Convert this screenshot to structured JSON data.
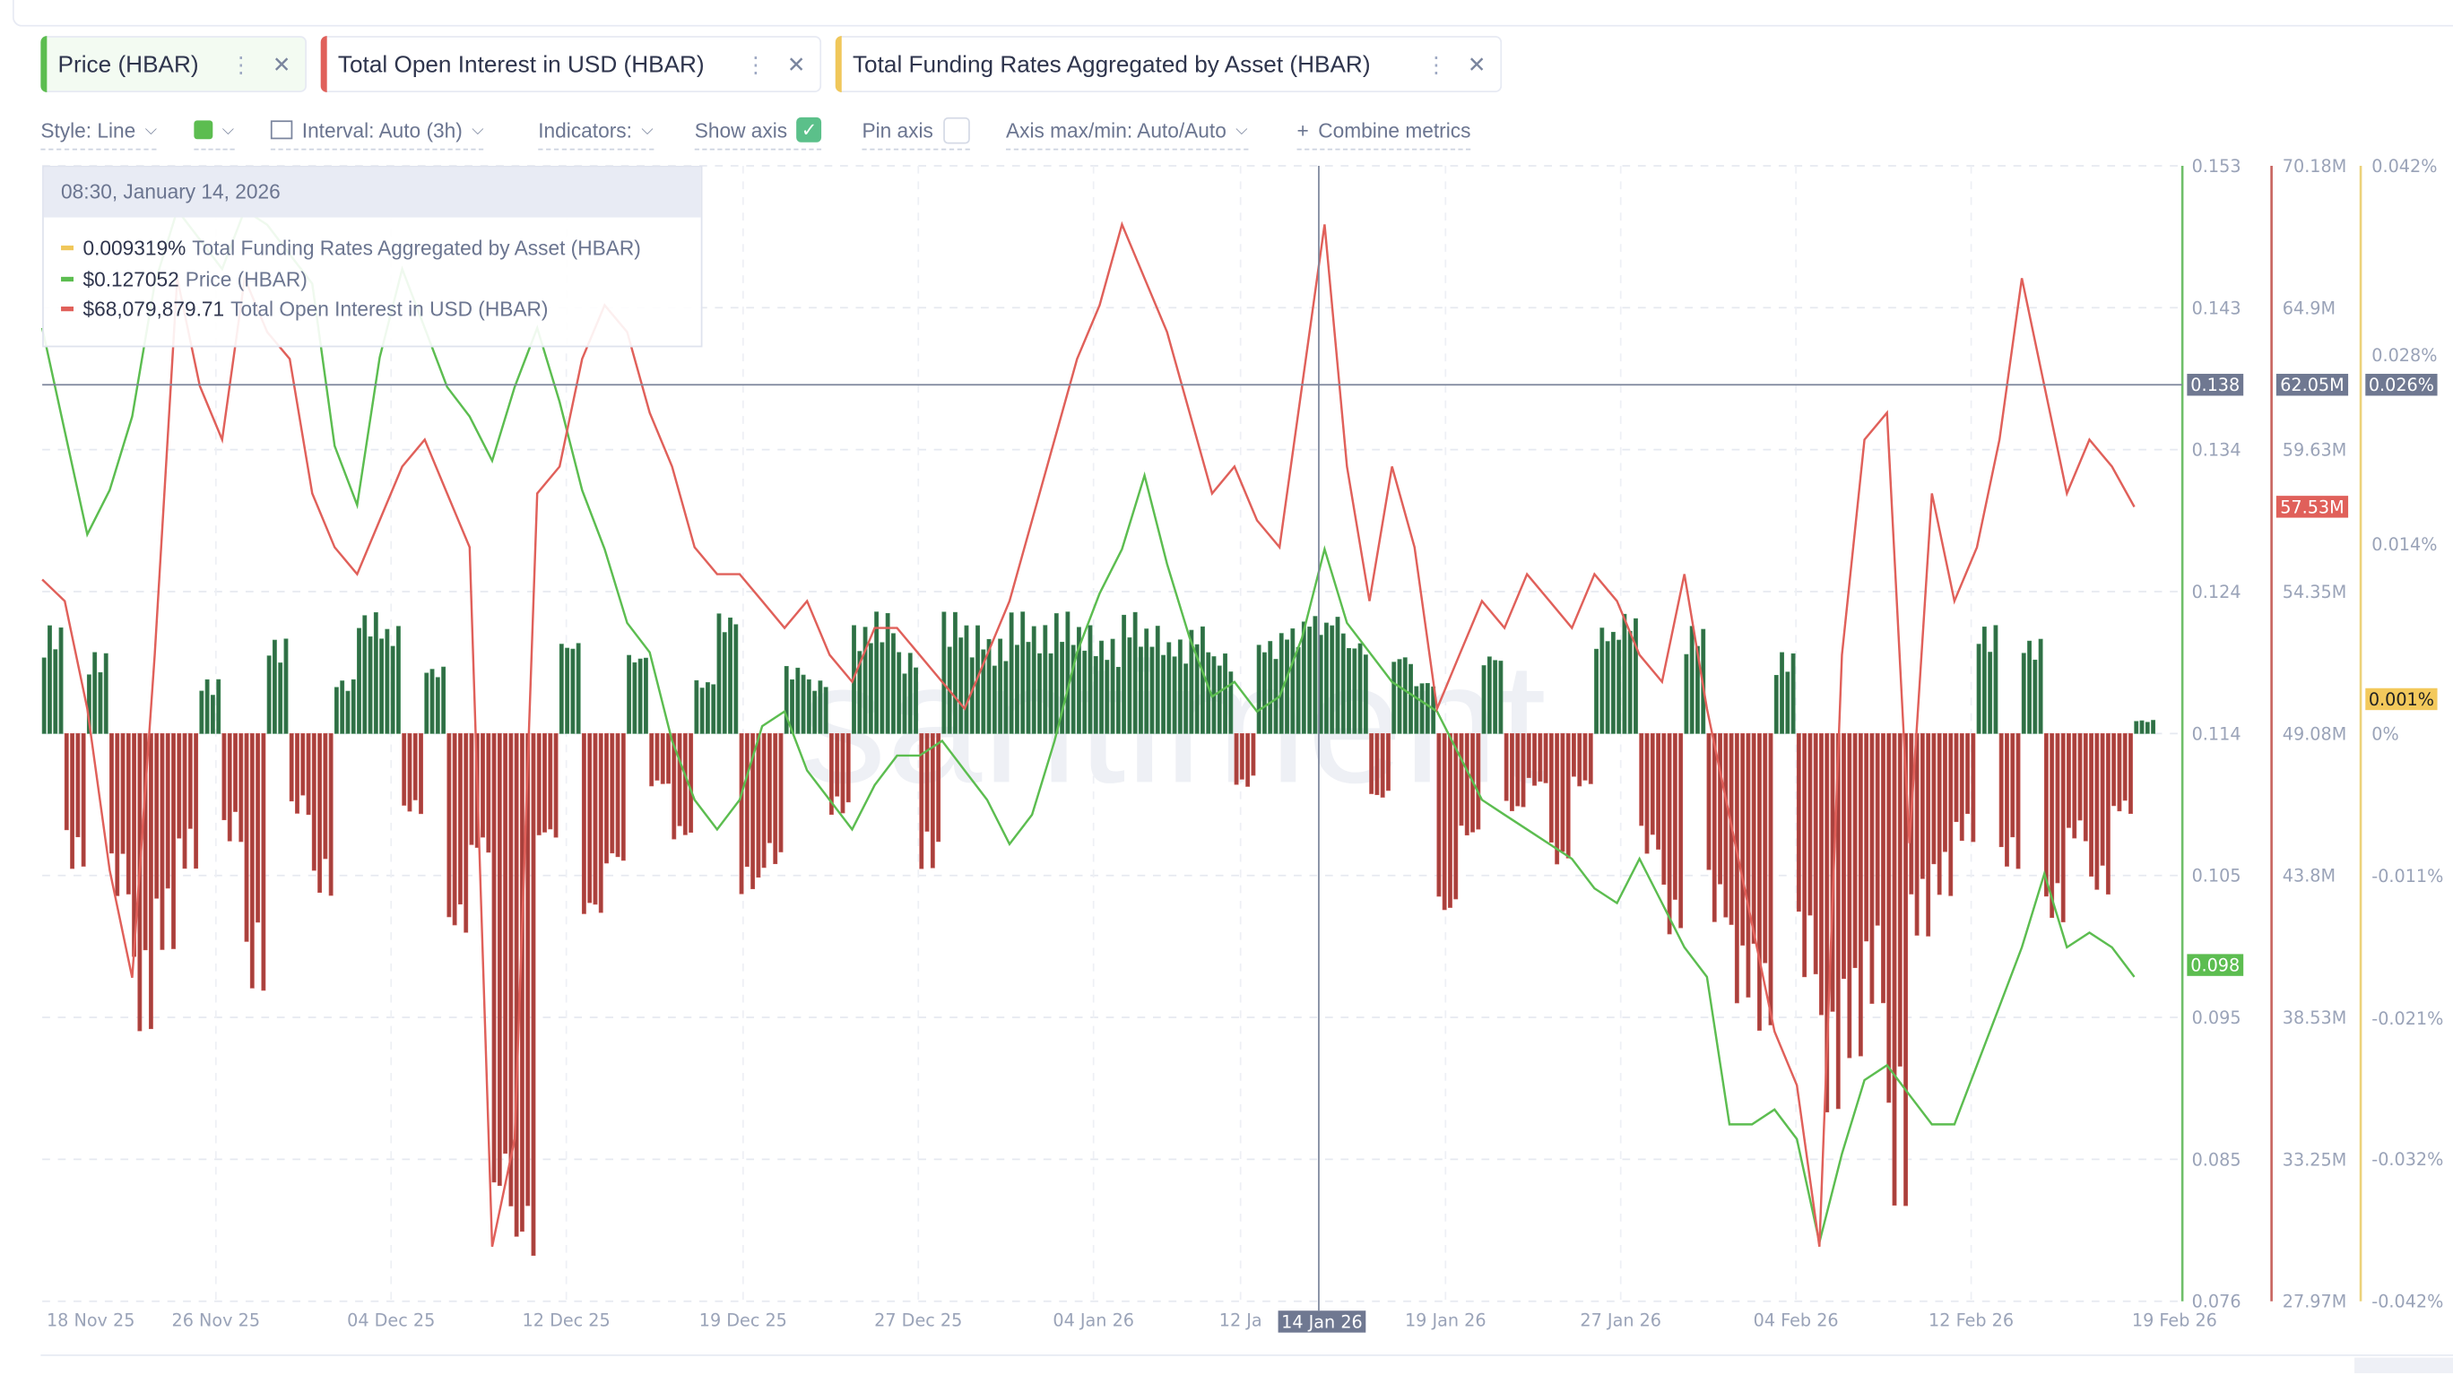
{
  "metrics": [
    {
      "label": "Price (HBAR)",
      "color": "#5cbd50"
    },
    {
      "label": "Total Open Interest in USD (HBAR)",
      "color": "#e0605a"
    },
    {
      "label": "Total Funding Rates Aggregated by Asset (HBAR)",
      "color": "#f0c75a"
    }
  ],
  "chip_menu_icon": "⋮",
  "chip_close_icon": "✕",
  "toolbar": {
    "style": "Style: Line",
    "interval": "Interval: Auto (3h)",
    "indicators": "Indicators:",
    "show_axis": "Show axis",
    "show_axis_checked": true,
    "pin_axis": "Pin axis",
    "pin_axis_checked": false,
    "axis_maxmin": "Axis max/min: Auto/Auto",
    "combine": "Combine metrics",
    "check_icon": "✓",
    "plus_icon": "+",
    "color_swatch": "#5cbd50"
  },
  "tooltip": {
    "date": "08:30, January 14, 2026",
    "rows": [
      {
        "value": "0.009319%",
        "name": "Total Funding Rates Aggregated by Asset (HBAR)",
        "color": "#f0c75a"
      },
      {
        "value": "$0.127052",
        "name": "Price (HBAR)",
        "color": "#5cbd50"
      },
      {
        "value": "$68,079,879.71",
        "name": "Total Open Interest in USD (HBAR)",
        "color": "#e0605a"
      }
    ]
  },
  "watermark": "santiment",
  "chart_data": {
    "type": "line",
    "x_start": "2025-11-18",
    "x_end": "2026-02-19",
    "x_step": "1 day (sampled)",
    "xticks": [
      "18 Nov 25",
      "26 Nov 25",
      "04 Dec 25",
      "12 Dec 25",
      "19 Dec 25",
      "27 Dec 25",
      "04 Jan 26",
      "12 Ja",
      "19 Jan 26",
      "27 Jan 26",
      "04 Feb 26",
      "12 Feb 26",
      "19 Feb 26"
    ],
    "crosshair": {
      "date_label": "14 Jan 26",
      "price_label": "0.138",
      "oi_label": "62.05M",
      "funding_label": "0.026%"
    },
    "axes": [
      {
        "name": "Price (HBAR)",
        "ylim": [
          0.076,
          0.153
        ],
        "ticks": [
          "0.153",
          "0.143",
          "0.134",
          "0.124",
          "0.114",
          "0.105",
          "0.095",
          "0.085",
          "0.076"
        ],
        "last_label": "0.098",
        "color": "#5cbd50"
      },
      {
        "name": "Total Open Interest in USD (HBAR)",
        "ylim": [
          27.97,
          70.18
        ],
        "unit": "M",
        "ticks": [
          "70.18M",
          "64.9M",
          "59.63M",
          "54.35M",
          "49.08M",
          "43.8M",
          "38.53M",
          "33.25M",
          "27.97M"
        ],
        "last_label": "57.53M",
        "color": "#e0605a"
      },
      {
        "name": "Total Funding Rates Aggregated by Asset (HBAR)",
        "ylim": [
          -0.042,
          0.042
        ],
        "unit": "%",
        "ticks": [
          "0.042%",
          "0.028%",
          "0.014%",
          "0%",
          "-0.011%",
          "-0.021%",
          "-0.032%",
          "-0.042%"
        ],
        "last_label": "0.001%",
        "color": "#f0c75a"
      }
    ],
    "series": [
      {
        "name": "Price (HBAR)",
        "type": "line",
        "values": [
          0.142,
          0.135,
          0.128,
          0.131,
          0.136,
          0.145,
          0.15,
          0.148,
          0.146,
          0.15,
          0.149,
          0.147,
          0.145,
          0.134,
          0.13,
          0.14,
          0.146,
          0.142,
          0.138,
          0.136,
          0.133,
          0.138,
          0.142,
          0.137,
          0.131,
          0.127,
          0.122,
          0.12,
          0.114,
          0.11,
          0.108,
          0.11,
          0.115,
          0.116,
          0.112,
          0.11,
          0.108,
          0.111,
          0.113,
          0.113,
          0.114,
          0.112,
          0.11,
          0.107,
          0.109,
          0.114,
          0.12,
          0.124,
          0.127,
          0.132,
          0.126,
          0.121,
          0.117,
          0.118,
          0.116,
          0.117,
          0.121,
          0.127,
          0.122,
          0.12,
          0.118,
          0.117,
          0.116,
          0.113,
          0.11,
          0.109,
          0.108,
          0.107,
          0.106,
          0.104,
          0.103,
          0.106,
          0.103,
          0.1,
          0.098,
          0.088,
          0.088,
          0.089,
          0.087,
          0.08,
          0.086,
          0.091,
          0.092,
          0.09,
          0.088,
          0.088,
          0.092,
          0.096,
          0.1,
          0.105,
          0.1,
          0.101,
          0.1,
          0.098
        ]
      },
      {
        "name": "Total Open Interest in USD (HBAR)",
        "type": "line",
        "unit": "M",
        "values": [
          54.8,
          54,
          50,
          44,
          40,
          52,
          66,
          62,
          60,
          66,
          64,
          63,
          58,
          56,
          55,
          57,
          59,
          60,
          58,
          56,
          30,
          34,
          58,
          59,
          63,
          65,
          64,
          61,
          59,
          56,
          55,
          55,
          54,
          53,
          54,
          52,
          51,
          53,
          53,
          52,
          51,
          50,
          52,
          54,
          57,
          60,
          63,
          65,
          68,
          66,
          64,
          61,
          58,
          59,
          57,
          56,
          62,
          68,
          59,
          54,
          59,
          56,
          50,
          52,
          54,
          53,
          55,
          54,
          53,
          55,
          54,
          52,
          51,
          55,
          50,
          46,
          42,
          38,
          36,
          30,
          52,
          60,
          61,
          45,
          58,
          54,
          56,
          60,
          66,
          62,
          58,
          60,
          59,
          57.5
        ]
      },
      {
        "name": "Total Funding Rates Aggregated by Asset (HBAR)",
        "type": "bar",
        "unit": "%",
        "values": [
          0.008,
          -0.01,
          0.006,
          -0.012,
          -0.022,
          -0.016,
          -0.01,
          0.004,
          -0.008,
          -0.019,
          0.007,
          -0.006,
          -0.012,
          0.004,
          0.009,
          0.008,
          -0.006,
          0.005,
          -0.015,
          -0.009,
          -0.036,
          -0.04,
          -0.008,
          0.007,
          -0.014,
          -0.01,
          0.006,
          -0.004,
          -0.008,
          0.004,
          0.009,
          -0.012,
          -0.01,
          0.005,
          0.004,
          -0.006,
          0.008,
          0.009,
          0.006,
          -0.01,
          0.009,
          0.008,
          0.007,
          0.009,
          0.008,
          0.009,
          0.008,
          0.007,
          0.009,
          0.008,
          0.007,
          0.008,
          0.006,
          -0.004,
          0.007,
          0.008,
          0.009,
          0.009,
          0.007,
          -0.005,
          0.006,
          0.004,
          -0.014,
          -0.008,
          0.006,
          -0.006,
          -0.004,
          -0.01,
          -0.004,
          0.008,
          0.009,
          -0.009,
          -0.015,
          0.008,
          -0.014,
          -0.02,
          -0.022,
          0.006,
          -0.018,
          -0.028,
          -0.024,
          -0.02,
          -0.035,
          -0.015,
          -0.012,
          -0.008,
          0.008,
          -0.01,
          0.007,
          -0.014,
          -0.008,
          -0.012,
          -0.006,
          0.001
        ]
      }
    ]
  }
}
